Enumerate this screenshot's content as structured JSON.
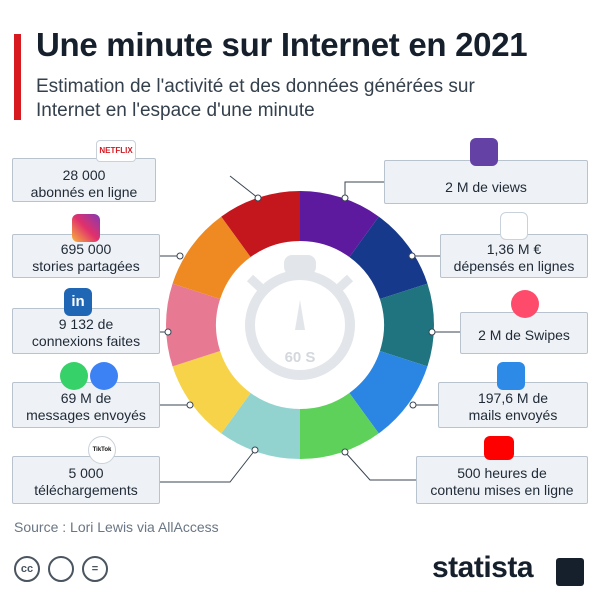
{
  "header": {
    "title": "Une minute sur Internet en 2021",
    "subtitle": "Estimation de l'activité et des données générées sur Internet en l'espace d'une minute"
  },
  "center": {
    "timer_label": "60 S"
  },
  "items": {
    "netflix": {
      "icon": "netflix-logo",
      "icon_text": "NETFLIX",
      "line1": "28 000",
      "line2": "abonnés en ligne",
      "color": "#c4171d"
    },
    "twitch": {
      "icon": "twitch-icon",
      "line1": "2 M de views",
      "color": "#5e1a9f"
    },
    "instagram": {
      "icon": "instagram-icon",
      "line1": "695 000",
      "line2": "stories partagées",
      "color": "#ef8a22"
    },
    "amazon": {
      "icon": "shopping-cart-icon",
      "line1": "1,36 M €",
      "line2": "dépensés en lignes",
      "color": "#16398c"
    },
    "linkedin": {
      "icon": "linkedin-icon",
      "icon_text": "in",
      "line1": "9 132 de",
      "line2": "connexions faites",
      "color": "#e77a92"
    },
    "tinder": {
      "icon": "tinder-flame-icon",
      "line1": "2 M de Swipes",
      "color": "#1f7480"
    },
    "messaging": {
      "icon": "whatsapp-messenger-icons",
      "line1": "69 M de",
      "line2": "messages envoyés",
      "color": "#f6d348"
    },
    "mail": {
      "icon": "mail-icon",
      "line1": "197,6 M de",
      "line2": "mails envoyés",
      "color": "#2b86e3"
    },
    "tiktok": {
      "icon": "tiktok-icon",
      "icon_text": "TikTok",
      "line1": "5 000",
      "line2": "téléchargements",
      "color": "#92d3d0"
    },
    "youtube": {
      "icon": "youtube-icon",
      "line1": "500 heures de",
      "line2": "contenu mises en ligne",
      "color": "#5dd15a"
    }
  },
  "footer": {
    "source": "Source : Lori Lewis via AllAccess",
    "license_icons": [
      "cc-icon",
      "by-icon",
      "nd-icon"
    ],
    "license_text": [
      "cc",
      "",
      "="
    ],
    "brand": "statista"
  },
  "colors": {
    "accent": "#d71920",
    "box_bg": "#eef1f5",
    "box_border": "#b9c3ce"
  }
}
